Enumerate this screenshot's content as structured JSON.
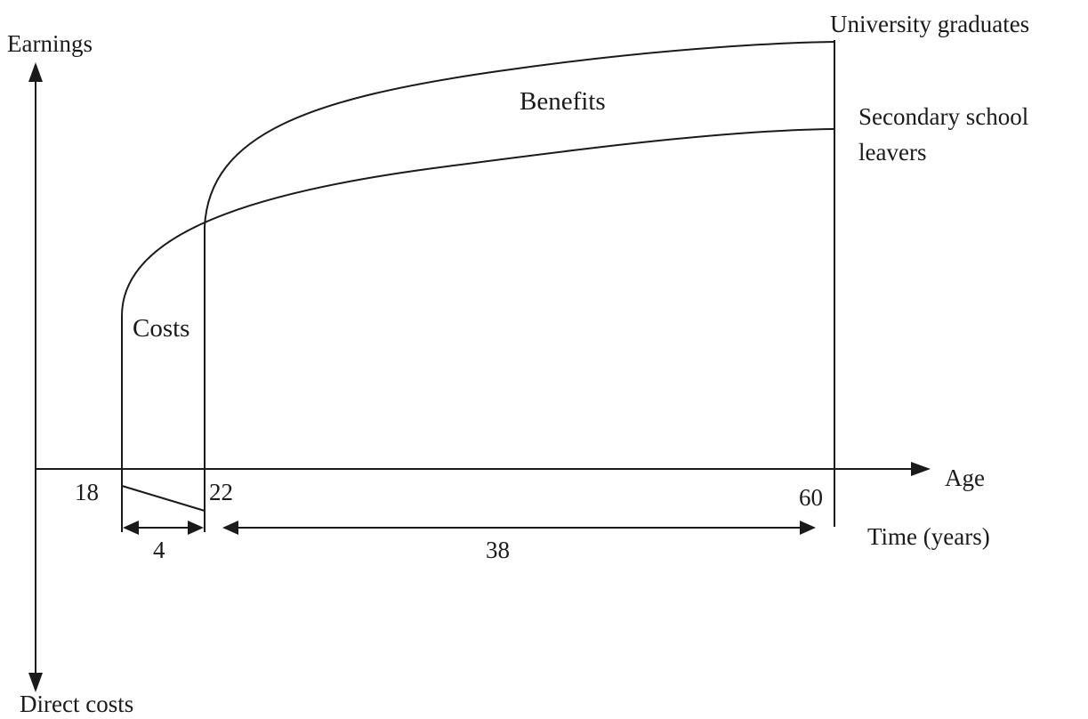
{
  "labels": {
    "earnings": "Earnings",
    "direct_costs": "Direct costs",
    "age": "Age",
    "time_years": "Time (years)",
    "university_graduates": "University graduates",
    "secondary_line1": "Secondary school",
    "secondary_line2": "leavers",
    "benefits": "Benefits",
    "costs": "Costs"
  },
  "ticks": {
    "age_18": "18",
    "age_22": "22",
    "age_60": "60"
  },
  "durations": {
    "study_years": "4",
    "working_years": "38"
  }
}
